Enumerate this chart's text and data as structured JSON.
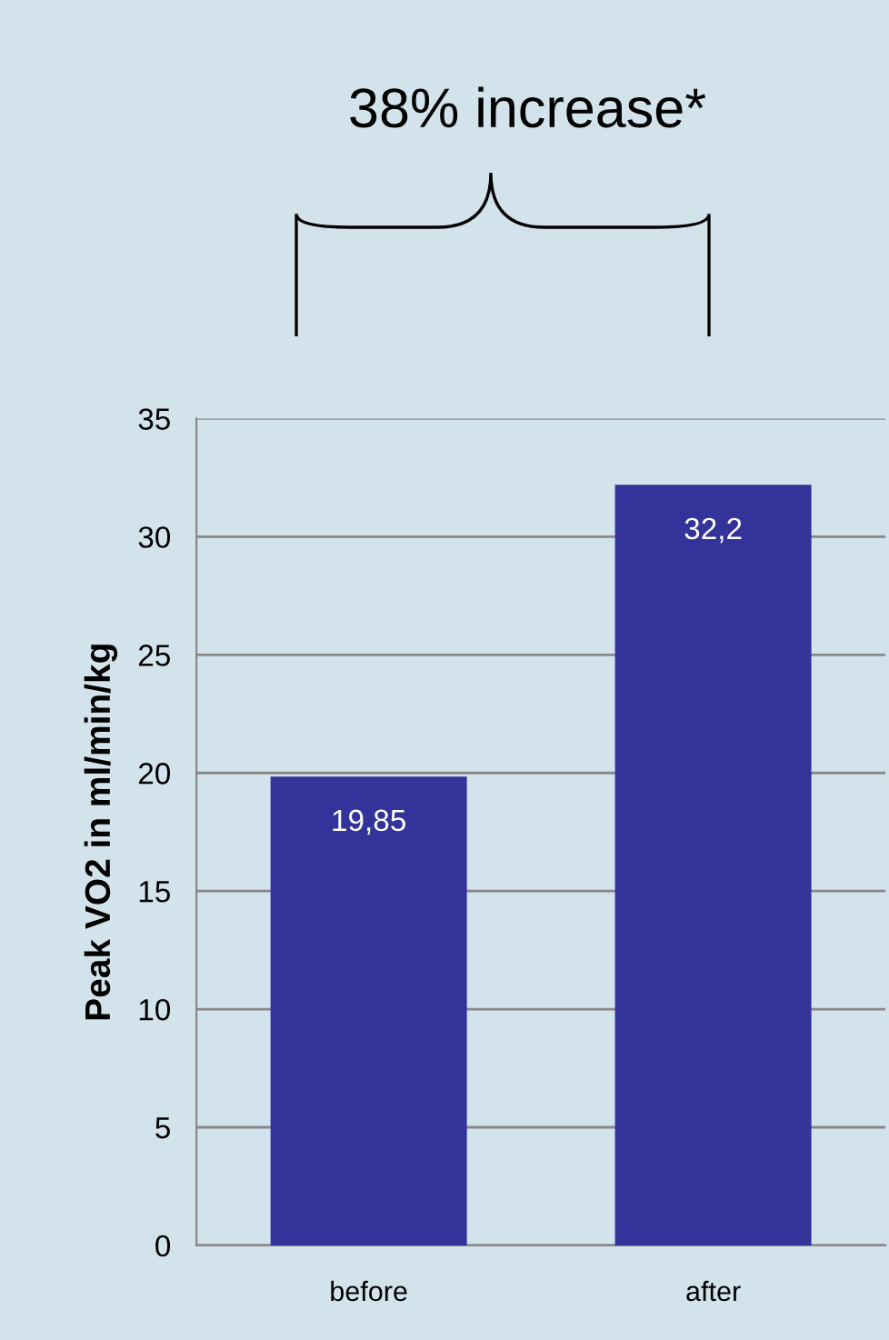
{
  "chart_data": {
    "type": "bar",
    "title": "38% increase*",
    "ylabel": "Peak VO2 in ml/min/kg",
    "categories": [
      "before",
      "after"
    ],
    "values": [
      19.85,
      32.2
    ],
    "color": "#333399",
    "value_labels": [
      "19,85",
      "32,2"
    ],
    "ylim": [
      0,
      35
    ],
    "yticks": [
      0,
      5,
      10,
      15,
      20,
      25,
      30,
      35
    ],
    "grid": "y"
  }
}
